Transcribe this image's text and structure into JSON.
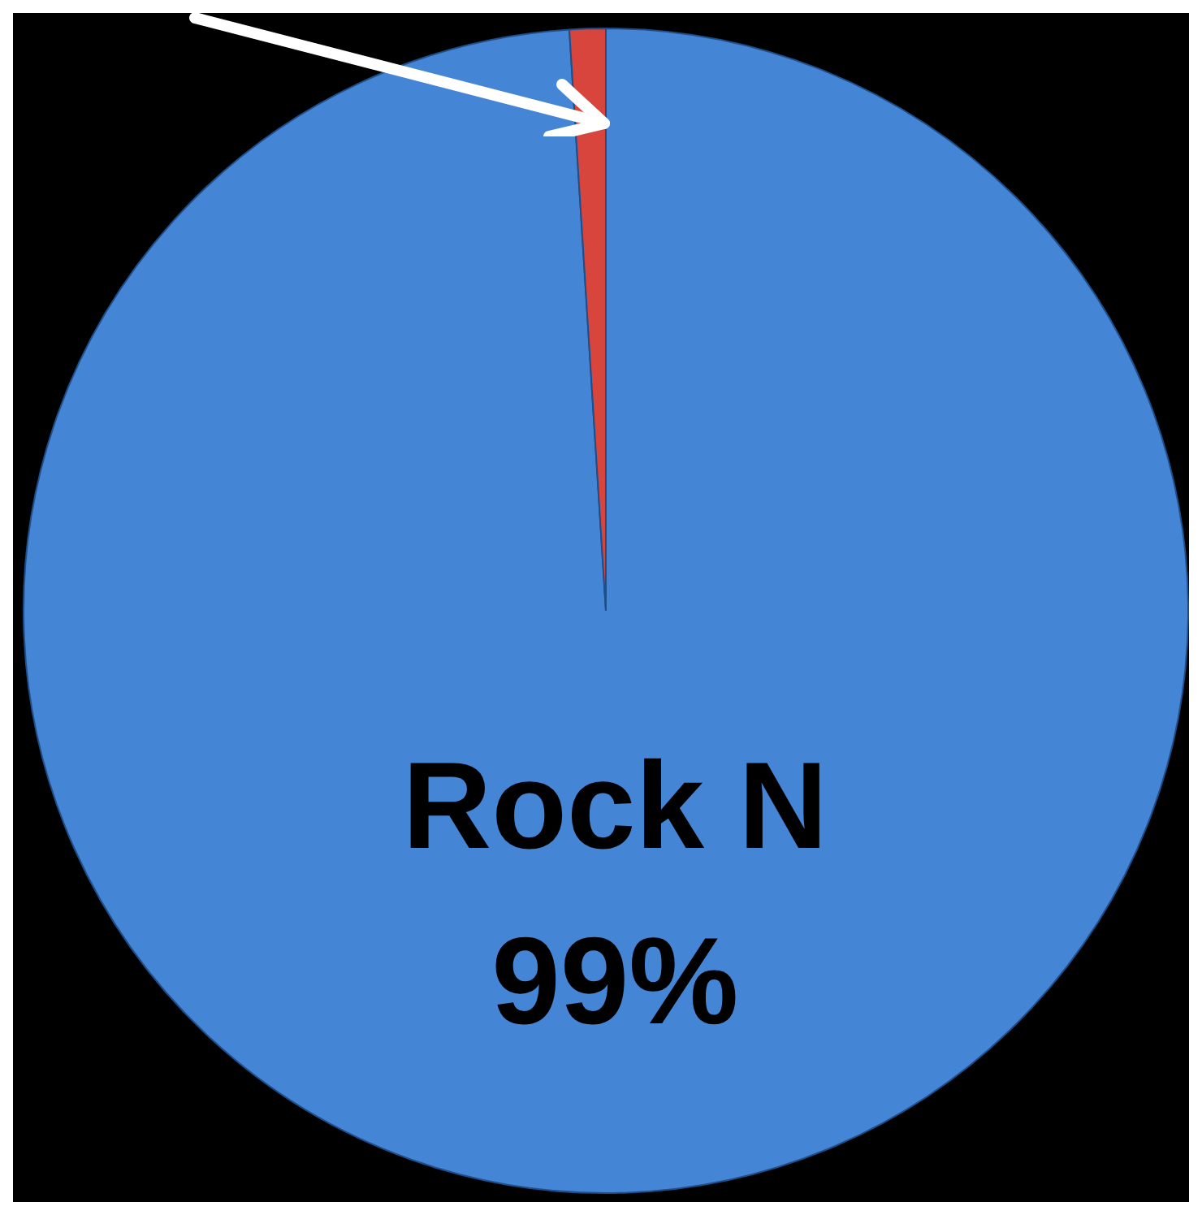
{
  "chart_data": {
    "type": "pie",
    "categories": [
      "Rock N",
      null
    ],
    "values": [
      99,
      1
    ],
    "colors": [
      "#4585d6",
      "#d8453d"
    ],
    "value_labels": [
      "99%",
      null
    ],
    "legend": false
  }
}
